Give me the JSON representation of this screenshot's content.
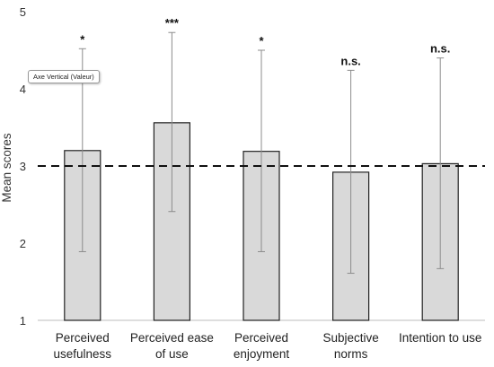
{
  "chart_data": {
    "type": "bar",
    "categories": [
      [
        "Perceived",
        "usefulness"
      ],
      [
        "Perceived ease",
        "of use"
      ],
      [
        "Perceived",
        "enjoyment"
      ],
      [
        "Subjective",
        "norms"
      ],
      [
        "Intention to use"
      ]
    ],
    "values": [
      3.2,
      3.56,
      3.19,
      2.92,
      3.03
    ],
    "error_upper": [
      4.52,
      4.73,
      4.5,
      4.24,
      4.4
    ],
    "error_lower": [
      1.89,
      2.41,
      1.89,
      1.61,
      1.67
    ],
    "significance": [
      "*",
      "***",
      "*",
      "n.s.",
      "n.s."
    ],
    "reference_line": 3,
    "ylabel": "Mean scores",
    "ylim": [
      1,
      5
    ],
    "yticks": [
      "1",
      "2",
      "3",
      "4",
      "5"
    ],
    "grid": false,
    "bar_color": "#d9d9d9",
    "bar_edge_color": "#222222"
  },
  "tooltip": {
    "text": "Axe Vertical (Valeur)"
  }
}
